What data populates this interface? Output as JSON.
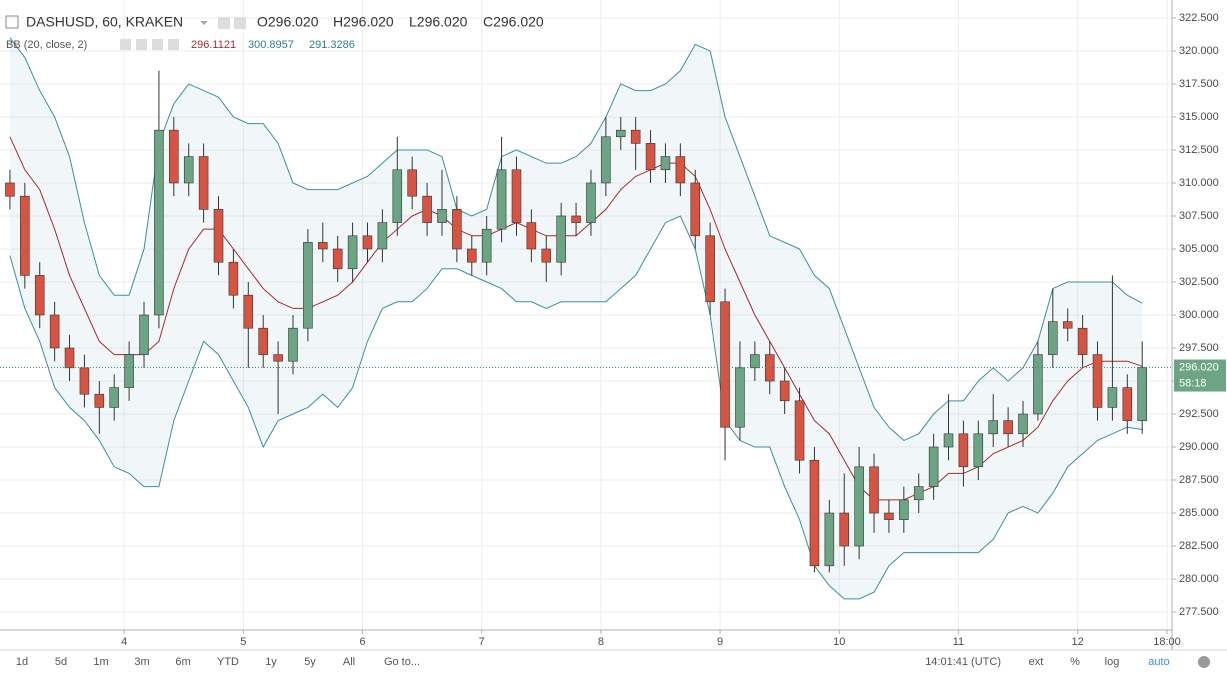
{
  "chart_data": {
    "type": "candlestick",
    "header": {
      "symbol": "DASHUSD, 60, KRAKEN",
      "ohlc": [
        "O296.020",
        "H296.020",
        "L296.020",
        "C296.020"
      ],
      "indicator": "BB (20, close, 2)",
      "indicator_values": [
        "296.1121",
        "300.8957",
        "291.3286"
      ]
    },
    "up_color": "#6ba583",
    "down_color": "#d75442",
    "band_color": "#3c8f9e",
    "basis_color": "#a52a2a",
    "grid": true,
    "x": [
      1,
      4,
      7,
      10,
      13,
      16,
      19,
      22,
      25,
      28,
      31,
      34,
      37,
      40,
      43,
      46,
      49,
      52,
      55,
      58,
      61,
      64,
      67,
      70,
      73,
      76,
      79,
      82,
      85,
      88,
      91,
      94,
      97,
      100,
      103,
      106,
      109,
      112,
      115,
      118,
      121,
      124,
      127,
      130,
      133,
      136,
      139,
      142,
      145,
      148,
      151,
      154,
      157,
      160,
      163,
      166,
      169,
      172,
      175,
      178,
      181,
      184,
      187,
      190,
      193,
      196,
      199,
      202,
      205,
      208,
      211,
      214,
      217,
      220,
      223,
      226,
      229
    ],
    "open": [
      310,
      309,
      303,
      300,
      297.5,
      296,
      294,
      293,
      294.5,
      297,
      300,
      314,
      310,
      312,
      308,
      304,
      301.5,
      299,
      297,
      296.5,
      299,
      305.5,
      305,
      303.5,
      306,
      305,
      307,
      311,
      309,
      307,
      308,
      305,
      304,
      306.5,
      311,
      307,
      305,
      304,
      307.5,
      307,
      310,
      313.5,
      314,
      313,
      311,
      312,
      310,
      306,
      301,
      291.5,
      296,
      297,
      295,
      293.5,
      289,
      281,
      285,
      282.5,
      288.5,
      285,
      284.5,
      286,
      287,
      290,
      291,
      288.5,
      291,
      292,
      291,
      292.5,
      297,
      299.5,
      299,
      297,
      293,
      294.5,
      292
    ],
    "high": [
      311,
      310,
      304,
      301,
      298.5,
      297,
      295,
      295.5,
      298,
      301,
      318.5,
      315,
      313,
      313,
      309,
      305,
      302.5,
      300,
      298,
      300,
      306.5,
      307,
      306,
      307,
      307,
      308,
      313.5,
      312,
      310,
      311,
      309,
      306,
      307.5,
      313.5,
      312,
      308,
      306,
      308.5,
      308.5,
      311,
      315,
      315,
      315,
      314,
      313,
      313,
      311,
      307,
      302,
      298,
      298,
      298,
      296,
      294.5,
      290,
      286,
      288,
      290,
      289.5,
      286,
      287,
      288,
      291,
      294,
      292,
      292,
      294,
      293,
      293.5,
      298,
      302,
      300.5,
      300,
      298,
      303,
      295.5,
      298
    ],
    "low": [
      308,
      302,
      299,
      296.5,
      295,
      293,
      291,
      292,
      293.5,
      296,
      299,
      309,
      309,
      307,
      303,
      300.5,
      296,
      296,
      292.5,
      295.5,
      298,
      304,
      302.5,
      302.5,
      304,
      304,
      306,
      308,
      306,
      306,
      304,
      303,
      303,
      305.5,
      306,
      304,
      302.5,
      303,
      306,
      306,
      309,
      312.5,
      311,
      310,
      310,
      309,
      305,
      300,
      289,
      290.5,
      295,
      294,
      292.5,
      288,
      280.5,
      280.5,
      281,
      281.5,
      283.5,
      283.5,
      283.5,
      285,
      286,
      289,
      287,
      287.5,
      290,
      290,
      290,
      292,
      296,
      298,
      296,
      292,
      292,
      291,
      291
    ],
    "close": [
      309,
      303,
      300,
      297.5,
      296,
      294,
      293,
      294.5,
      297,
      300,
      314,
      310,
      312,
      308,
      304,
      301.5,
      299,
      297,
      296.5,
      299,
      305.5,
      305,
      303.5,
      306,
      305,
      307,
      311,
      309,
      307,
      308,
      305,
      304,
      306.5,
      311,
      307,
      305,
      304,
      307.5,
      307,
      310,
      313.5,
      314,
      313,
      311,
      312,
      310,
      306,
      301,
      291.5,
      296,
      297,
      295,
      293.5,
      289,
      281,
      285,
      282.5,
      288.5,
      285,
      284.5,
      286,
      287,
      290,
      291,
      288.5,
      291,
      292,
      291,
      292.5,
      297,
      299.5,
      299,
      297,
      293,
      294.5,
      292,
      296.02
    ],
    "bb_upper": [
      321,
      319.5,
      317,
      315,
      312,
      307,
      303,
      301.5,
      301.5,
      305,
      313,
      316,
      317.5,
      317,
      316.5,
      315,
      314.5,
      314.5,
      313,
      310,
      309.5,
      309.5,
      309.5,
      310,
      310.5,
      311.5,
      312.5,
      312.5,
      312.5,
      312,
      308,
      307.5,
      308,
      312,
      312.5,
      312,
      311.5,
      311.5,
      312,
      313,
      315,
      317.5,
      317,
      317,
      317.5,
      318.5,
      320.5,
      320,
      315,
      312,
      309,
      306,
      305.5,
      305,
      303,
      302,
      299,
      296,
      293,
      291.5,
      290.5,
      291,
      292.5,
      293.5,
      293.5,
      295,
      296,
      295,
      296,
      298,
      302,
      302.5,
      302.5,
      302.5,
      302.5,
      301.5,
      300.8957
    ],
    "bb_basis": [
      313.5,
      311,
      309.5,
      306.5,
      303,
      300.5,
      298,
      297,
      297,
      297,
      298,
      302,
      305,
      306.5,
      306.5,
      305,
      303.5,
      302,
      301,
      300.5,
      300.5,
      301,
      301.5,
      302.5,
      304,
      305.5,
      306.5,
      307.5,
      308,
      307.5,
      306.5,
      306,
      306,
      306.5,
      307,
      306.5,
      306,
      306,
      306,
      307,
      308,
      309.5,
      310.5,
      311,
      311.5,
      311.5,
      310.5,
      308,
      305,
      302.5,
      300,
      298,
      296,
      294,
      292,
      291,
      289,
      287,
      286,
      286,
      286,
      286.5,
      287,
      288,
      288,
      288.5,
      289.5,
      290,
      290.5,
      291.5,
      293.5,
      295,
      296,
      296.5,
      296.5,
      296.5,
      296.1121
    ],
    "bb_lower": [
      304.5,
      300.5,
      298,
      294.5,
      293,
      292,
      290.5,
      288.5,
      288,
      287,
      287,
      292,
      295,
      298,
      297,
      295,
      293,
      290,
      292,
      292.5,
      293,
      294,
      293,
      294.5,
      298,
      300.5,
      301,
      301,
      302,
      303.5,
      303.5,
      303,
      302.5,
      302,
      301,
      301,
      300.5,
      301,
      301,
      301,
      301,
      302,
      303,
      305,
      307,
      307.5,
      305,
      300,
      292,
      290.5,
      290,
      290,
      287,
      284.5,
      281,
      279.5,
      278.5,
      278.5,
      279,
      281,
      282,
      282,
      282,
      282,
      282,
      282,
      283,
      285,
      285.5,
      285,
      286.5,
      288.5,
      289.5,
      290.5,
      291,
      291.5,
      291.3286
    ],
    "xlim": [
      -1,
      235
    ],
    "ylim": [
      276.14,
      323.86
    ],
    "xticks": [
      {
        "value": 24,
        "label": "4"
      },
      {
        "value": 48,
        "label": "5"
      },
      {
        "value": 72,
        "label": "6"
      },
      {
        "value": 96,
        "label": "7"
      },
      {
        "value": 120,
        "label": "8"
      },
      {
        "value": 144,
        "label": "9"
      },
      {
        "value": 168,
        "label": "10"
      },
      {
        "value": 192,
        "label": "11"
      },
      {
        "value": 216,
        "label": "12"
      },
      {
        "value": 234,
        "label": "18:00"
      }
    ],
    "yticks": [
      {
        "value": 277.5,
        "label": "277.500"
      },
      {
        "value": 280,
        "label": "280.000"
      },
      {
        "value": 282.5,
        "label": "282.500"
      },
      {
        "value": 285,
        "label": "285.000"
      },
      {
        "value": 287.5,
        "label": "287.500"
      },
      {
        "value": 290,
        "label": "290.000"
      },
      {
        "value": 292.5,
        "label": "292.500"
      },
      {
        "value": 295,
        "label": "295.000"
      },
      {
        "value": 297.5,
        "label": "297.500"
      },
      {
        "value": 300,
        "label": "300.000"
      },
      {
        "value": 302.5,
        "label": "302.500"
      },
      {
        "value": 305,
        "label": "305.000"
      },
      {
        "value": 307.5,
        "label": "307.500"
      },
      {
        "value": 310,
        "label": "310.000"
      },
      {
        "value": 312.5,
        "label": "312.500"
      },
      {
        "value": 315,
        "label": "315.000"
      },
      {
        "value": 317.5,
        "label": "317.500"
      },
      {
        "value": 320,
        "label": "320.000"
      },
      {
        "value": 322.5,
        "label": "322.500"
      }
    ],
    "last_price_label": "296.020",
    "countdown": "58:18",
    "toolbar": {
      "ranges": [
        "1d",
        "5d",
        "1m",
        "3m",
        "6m",
        "YTD",
        "1y",
        "5y",
        "All",
        "Go to..."
      ],
      "clock": "14:01:41 (UTC)",
      "options": [
        "ext",
        "%",
        "log",
        "auto"
      ]
    }
  }
}
